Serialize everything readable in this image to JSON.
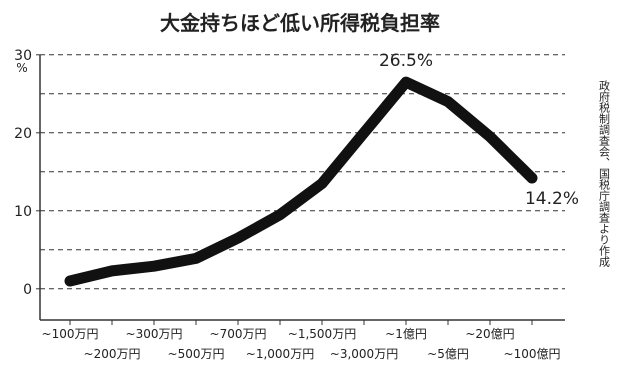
{
  "chart_data": {
    "type": "line",
    "title": "大金持ちほど低い所得税負担率",
    "y_unit": "%",
    "source": "政府税制調査会、国税庁調査より作成",
    "categories": [
      "~100万円",
      "~200万円",
      "~300万円",
      "~500万円",
      "~700万円",
      "~1,000万円",
      "~1,500万円",
      "~3,000万円",
      "~1億円",
      "~5億円",
      "~20億円",
      "~100億円"
    ],
    "values": [
      1.0,
      2.3,
      2.9,
      3.9,
      6.5,
      9.5,
      13.5,
      20.0,
      26.5,
      24.0,
      19.5,
      14.2
    ],
    "value_labels": [
      null,
      null,
      null,
      null,
      null,
      null,
      null,
      null,
      "26.5%",
      null,
      null,
      "14.2%"
    ],
    "color": "#111111",
    "ylim": [
      -4,
      31
    ],
    "yticks": [
      0,
      10,
      20,
      30
    ],
    "grid_lines": [
      0,
      5,
      10,
      15,
      20,
      25,
      30
    ],
    "grid": true
  }
}
